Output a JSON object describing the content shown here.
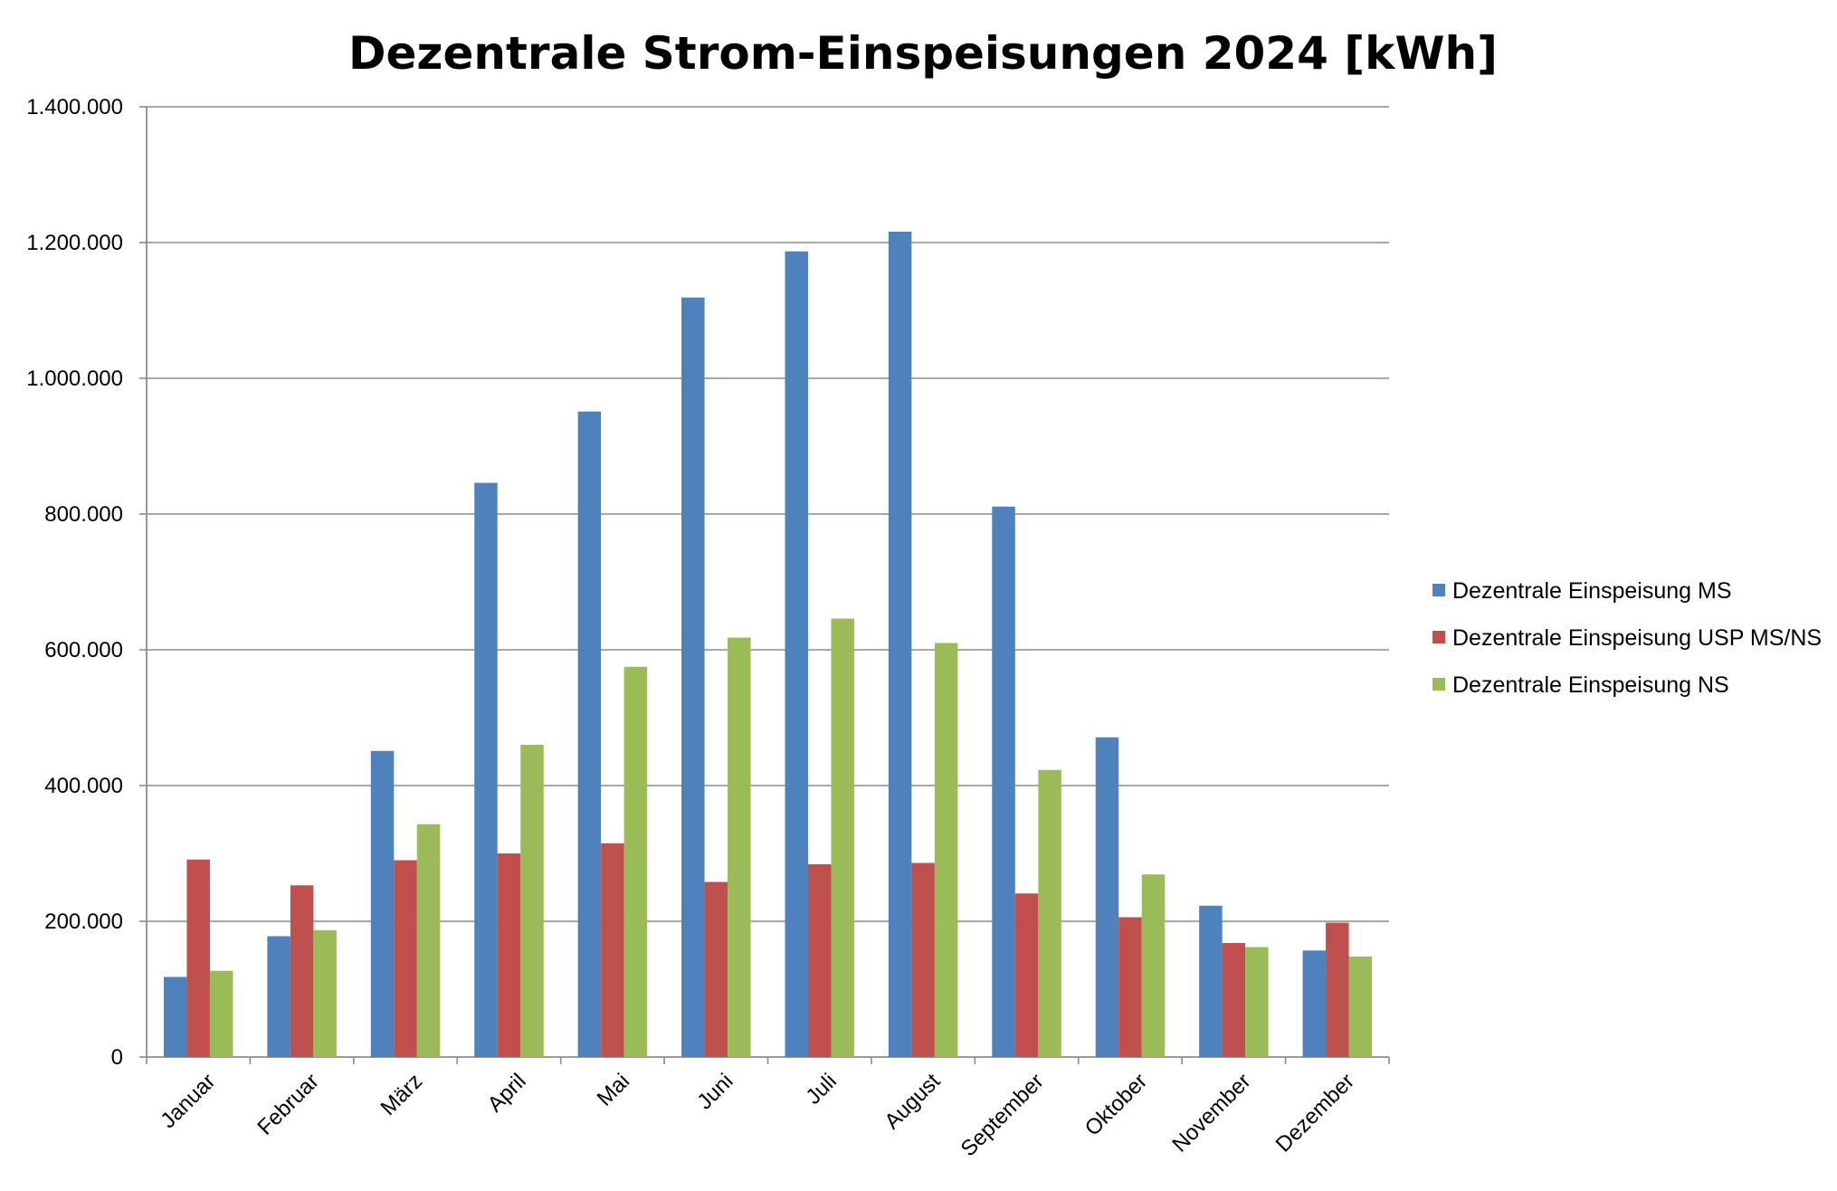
{
  "chart_data": {
    "type": "bar",
    "title": "Dezentrale Strom-Einspeisungen 2024 [kWh]",
    "xlabel": "",
    "ylabel": "",
    "ylim": [
      0,
      1400000
    ],
    "yticks": [
      0,
      200000,
      400000,
      600000,
      800000,
      1000000,
      1200000,
      1400000
    ],
    "ytick_labels": [
      "0",
      "200.000",
      "400.000",
      "600.000",
      "800.000",
      "1.000.000",
      "1.200.000",
      "1.400.000"
    ],
    "grid": "horizontal",
    "legend_position": "right",
    "categories": [
      "Januar",
      "Februar",
      "März",
      "April",
      "Mai",
      "Juni",
      "Juli",
      "August",
      "September",
      "Oktober",
      "November",
      "Dezember"
    ],
    "series": [
      {
        "name": "Dezentrale Einspeisung MS",
        "color": "#4F81BD",
        "values": [
          118000,
          178000,
          451000,
          846000,
          951000,
          1119000,
          1187000,
          1216000,
          811000,
          471000,
          223000,
          157000
        ]
      },
      {
        "name": "Dezentrale Einspeisung USP MS/NS",
        "color": "#C0504D",
        "values": [
          291000,
          253000,
          290000,
          300000,
          315000,
          258000,
          284000,
          286000,
          241000,
          206000,
          168000,
          198000
        ]
      },
      {
        "name": "Dezentrale Einspeisung NS",
        "color": "#9BBB59",
        "values": [
          127000,
          187000,
          343000,
          460000,
          575000,
          618000,
          646000,
          610000,
          423000,
          269000,
          162000,
          148000
        ]
      }
    ]
  }
}
